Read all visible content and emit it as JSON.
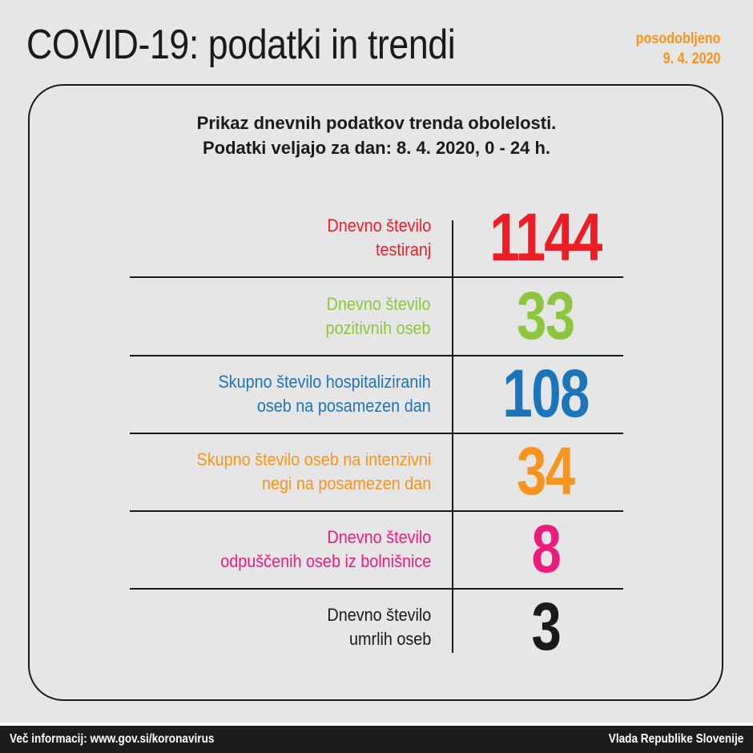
{
  "header": {
    "title": "COVID-19: podatki in trendi",
    "updated_label": "posodobljeno",
    "updated_date": "9. 4. 2020"
  },
  "subtitle": {
    "line1": "Prikaz dnevnih podatkov trenda obolelosti.",
    "line2": "Podatki veljajo za dan: 8. 4. 2020, 0 - 24 h."
  },
  "rows": [
    {
      "label1": "Dnevno število",
      "label2": "testiranj",
      "value": "1144",
      "color": "#ee1c25"
    },
    {
      "label1": "Dnevno število",
      "label2": "pozitivnih oseb",
      "value": "33",
      "color": "#8cc63f"
    },
    {
      "label1": "Skupno število hospitaliziranih",
      "label2": "oseb na posamezen dan",
      "value": "108",
      "color": "#1b75bb"
    },
    {
      "label1": "Skupno število oseb na intenzivni",
      "label2": "negi na posamezen dan",
      "value": "34",
      "color": "#f7941d"
    },
    {
      "label1": "Dnevno število",
      "label2": "odpuščenih oseb iz bolnišnice",
      "value": "8",
      "color": "#ec1c7f"
    },
    {
      "label1": "Dnevno število",
      "label2": "umrlih oseb",
      "value": "3",
      "color": "#1a1a1a"
    }
  ],
  "footer": {
    "info": "Več informacij: www.gov.si/koronavirus",
    "org": "Vlada Republike Slovenije"
  }
}
